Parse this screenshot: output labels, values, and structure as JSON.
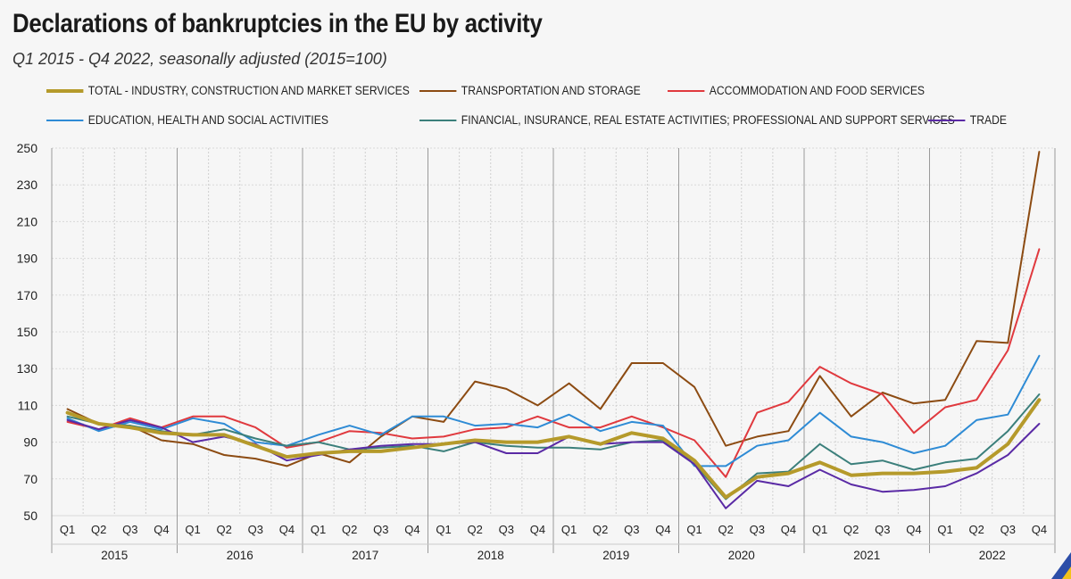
{
  "title": "Declarations of bankruptcies in the EU by activity",
  "subtitle": "Q1 2015 - Q4 2022, seasonally adjusted  (2015=100)",
  "chart_data": {
    "type": "line",
    "title": "Declarations of bankruptcies in the EU by activity",
    "subtitle": "Q1 2015 - Q4 2022, seasonally adjusted  (2015=100)",
    "xlabel": "",
    "ylabel": "",
    "ylim": [
      50,
      250
    ],
    "yticks": [
      50,
      70,
      90,
      110,
      130,
      150,
      170,
      190,
      210,
      230,
      250
    ],
    "grid": true,
    "legend_position": "top",
    "quarters": [
      "Q1",
      "Q2",
      "Q3",
      "Q4"
    ],
    "years": [
      "2015",
      "2016",
      "2017",
      "2018",
      "2019",
      "2020",
      "2021",
      "2022"
    ],
    "series": [
      {
        "name": "TOTAL - INDUSTRY, CONSTRUCTION AND MARKET SERVICES",
        "color": "#b59a2b",
        "thick": true,
        "values": [
          106,
          100,
          98,
          95,
          94,
          94,
          88,
          82,
          84,
          85,
          85,
          87,
          89,
          91,
          90,
          90,
          93,
          89,
          95,
          92,
          80,
          60,
          71,
          73,
          79,
          72,
          73,
          73,
          74,
          76,
          89,
          113
        ]
      },
      {
        "name": "TRANSPORTATION AND STORAGE",
        "color": "#8c4b12",
        "thick": false,
        "values": [
          108,
          100,
          99,
          91,
          89,
          83,
          81,
          77,
          84,
          79,
          93,
          104,
          101,
          123,
          119,
          110,
          122,
          108,
          133,
          133,
          120,
          88,
          93,
          96,
          126,
          104,
          117,
          111,
          113,
          145,
          144,
          248
        ]
      },
      {
        "name": "ACCOMMODATION AND FOOD SERVICES",
        "color": "#e0393e",
        "thick": false,
        "values": [
          101,
          97,
          103,
          98,
          104,
          104,
          98,
          87,
          90,
          96,
          95,
          92,
          93,
          97,
          98,
          104,
          98,
          98,
          104,
          98,
          91,
          71,
          106,
          112,
          131,
          122,
          116,
          95,
          109,
          113,
          140,
          195
        ]
      },
      {
        "name": "EDUCATION,  HEALTH AND SOCIAL ACTIVITIES",
        "color": "#2e8bd5",
        "thick": false,
        "values": [
          103,
          96,
          101,
          97,
          103,
          100,
          90,
          88,
          94,
          99,
          94,
          104,
          104,
          99,
          100,
          98,
          105,
          96,
          101,
          99,
          77,
          77,
          88,
          91,
          106,
          93,
          90,
          84,
          88,
          102,
          105,
          137
        ]
      },
      {
        "name": "FINANCIAL, INSURANCE, REAL ESTATE ACTIVITIES; PROFESSIONAL AND SUPPORT SERVICES",
        "color": "#3b7f7b",
        "thick": false,
        "values": [
          104,
          100,
          99,
          96,
          94,
          97,
          92,
          88,
          90,
          86,
          87,
          88,
          85,
          90,
          88,
          87,
          87,
          86,
          90,
          91,
          78,
          59,
          73,
          74,
          89,
          78,
          80,
          75,
          79,
          81,
          96,
          116
        ]
      },
      {
        "name": "TRADE",
        "color": "#5a2aa5",
        "thick": false,
        "values": [
          102,
          97,
          102,
          98,
          90,
          93,
          89,
          80,
          83,
          86,
          88,
          89,
          89,
          90,
          84,
          84,
          93,
          89,
          90,
          90,
          78,
          54,
          69,
          66,
          75,
          67,
          63,
          64,
          66,
          73,
          83,
          100
        ]
      }
    ]
  }
}
